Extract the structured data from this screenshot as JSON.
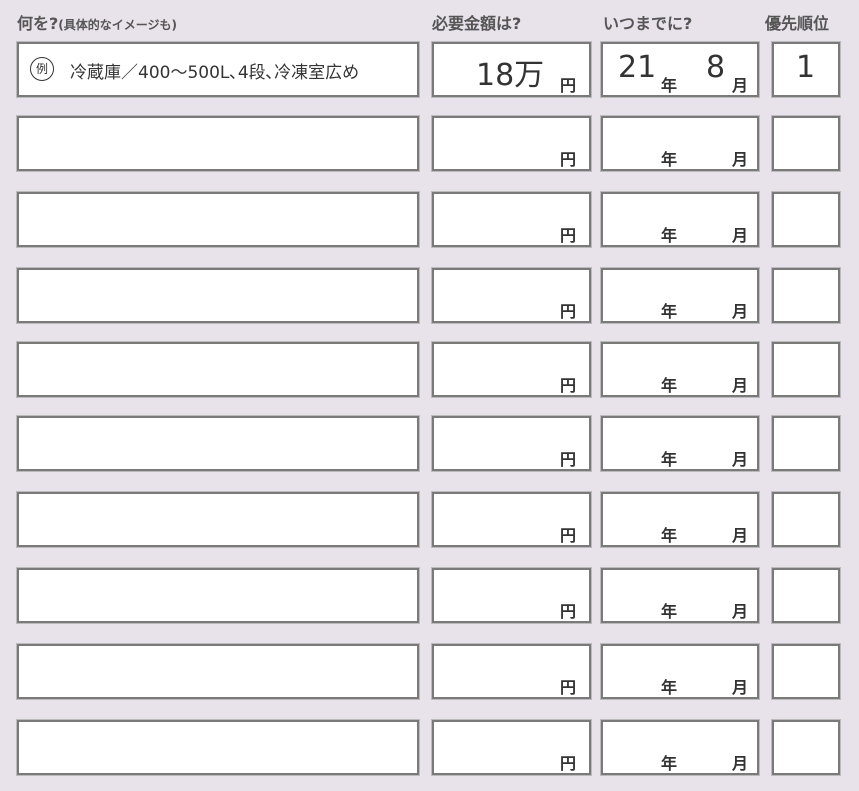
{
  "header": {
    "item": "何を?",
    "item_note": "(具体的なイメージも)",
    "amount": "必要金額は?",
    "when": "いつまでに?",
    "priority": "優先順位"
  },
  "units": {
    "yen": "円",
    "year": "年",
    "month": "月"
  },
  "example": {
    "marker": "例",
    "item": "冷蔵庫／400〜500L､4段､冷凍室広め",
    "amount": "18万",
    "year": "21",
    "month": "8",
    "priority": "1"
  }
}
